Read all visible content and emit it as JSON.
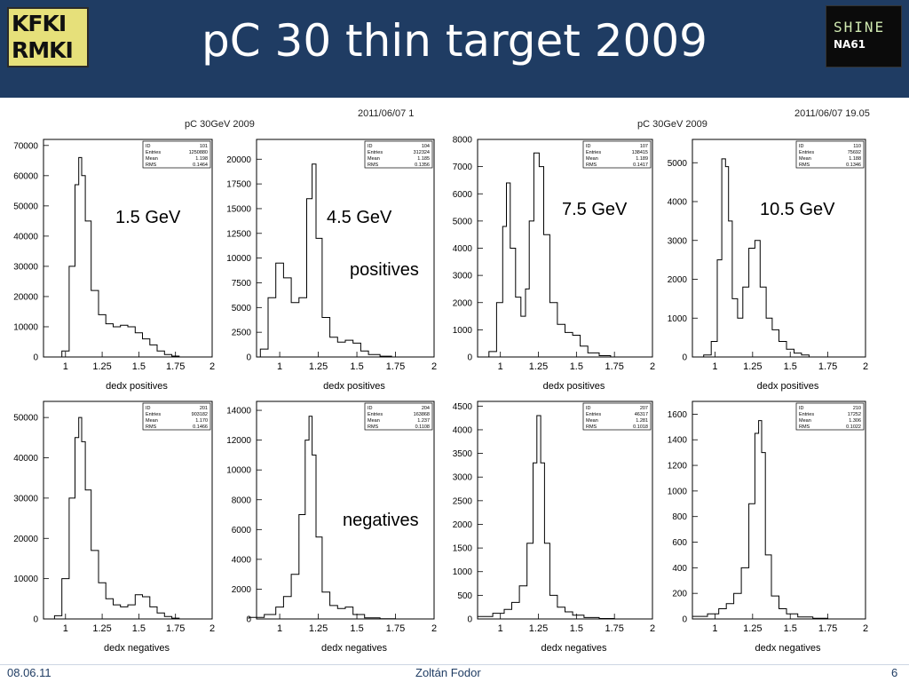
{
  "slide": {
    "title": "pC 30 thin target 2009",
    "logo_left": {
      "line1": "KFKI",
      "line2": "RMKI"
    },
    "logo_right": {
      "line1": "SHINE",
      "line2": "NA61"
    },
    "footer": {
      "date": "08.06.11",
      "author": "Zoltán Fodor",
      "page": "6"
    },
    "colors": {
      "header_bg": "#1f3c63",
      "title_text": "#ffffff",
      "plot_line": "#000000"
    }
  },
  "figure": {
    "canvas_titles": [
      "pC 30GeV 2009",
      "pC 30GeV 2009"
    ],
    "timestamps": [
      "2011/06/07  1",
      "2011/06/07  19.05"
    ],
    "annotations": {
      "energies": [
        "1.5 GeV",
        "4.5 GeV",
        "7.5 GeV",
        "10.5 GeV"
      ],
      "positives": "positives",
      "negatives": "negatives"
    }
  },
  "chart_data": [
    {
      "type": "line",
      "xlabel": "dedx positives",
      "xticks": [
        "1",
        "1.25",
        "1.5",
        "1.75",
        "2"
      ],
      "xlim": [
        0.85,
        2
      ],
      "ylim": [
        0,
        72000
      ],
      "yticks": [
        0,
        10000,
        20000,
        30000,
        40000,
        50000,
        60000,
        70000
      ],
      "stats": {
        "ID": "101",
        "Entries": "1250880",
        "Mean": "1.198",
        "RMS": "0.1464"
      },
      "x": [
        1.0,
        1.05,
        1.08,
        1.1,
        1.12,
        1.15,
        1.2,
        1.25,
        1.3,
        1.35,
        1.4,
        1.45,
        1.5,
        1.55,
        1.6,
        1.65,
        1.7,
        1.75
      ],
      "y": [
        2000,
        30000,
        57000,
        66000,
        60000,
        45000,
        22000,
        14000,
        11000,
        10000,
        10500,
        10000,
        8000,
        6000,
        4000,
        2000,
        800,
        300
      ]
    },
    {
      "type": "line",
      "xlabel": "dedx positives",
      "xticks": [
        "1",
        "1.25",
        "1.5",
        "1.75",
        "2"
      ],
      "xlim": [
        0.85,
        2
      ],
      "ylim": [
        0,
        22000
      ],
      "yticks": [
        0,
        2500,
        5000,
        7500,
        10000,
        12500,
        15000,
        17500,
        20000
      ],
      "stats": {
        "ID": "104",
        "Entries": "312324",
        "Mean": "1.185",
        "RMS": "0.1356"
      },
      "x": [
        0.9,
        0.95,
        1.0,
        1.05,
        1.1,
        1.15,
        1.2,
        1.22,
        1.25,
        1.3,
        1.35,
        1.4,
        1.45,
        1.5,
        1.55,
        1.6,
        1.7
      ],
      "y": [
        800,
        6000,
        9500,
        8000,
        5500,
        6000,
        16000,
        19500,
        12000,
        4000,
        2000,
        1500,
        1700,
        1400,
        600,
        250,
        80
      ]
    },
    {
      "type": "line",
      "xlabel": "dedx positives",
      "xticks": [
        "1",
        "1.25",
        "1.5",
        "1.75",
        "2"
      ],
      "xlim": [
        0.85,
        2
      ],
      "ylim": [
        0,
        8000
      ],
      "yticks": [
        0,
        1000,
        2000,
        3000,
        4000,
        5000,
        6000,
        7000,
        8000
      ],
      "stats": {
        "ID": "107",
        "Entries": "138415",
        "Mean": "1.189",
        "RMS": "0.1417"
      },
      "x": [
        0.95,
        1.0,
        1.03,
        1.05,
        1.08,
        1.12,
        1.15,
        1.18,
        1.2,
        1.24,
        1.27,
        1.3,
        1.35,
        1.4,
        1.45,
        1.5,
        1.55,
        1.6,
        1.7
      ],
      "y": [
        200,
        2000,
        4800,
        6400,
        4000,
        2200,
        1500,
        2500,
        5000,
        7500,
        7000,
        4500,
        2000,
        1200,
        900,
        800,
        400,
        150,
        50
      ]
    },
    {
      "type": "line",
      "xlabel": "dedx positives",
      "xticks": [
        "1",
        "1.25",
        "1.5",
        "1.75",
        "2"
      ],
      "xlim": [
        0.85,
        2
      ],
      "ylim": [
        0,
        5600
      ],
      "yticks": [
        0,
        1000,
        2000,
        3000,
        4000,
        5000
      ],
      "stats": {
        "ID": "110",
        "Entries": "75692",
        "Mean": "1.188",
        "RMS": "0.1346"
      },
      "x": [
        0.95,
        1.0,
        1.03,
        1.06,
        1.08,
        1.1,
        1.13,
        1.17,
        1.2,
        1.25,
        1.28,
        1.32,
        1.36,
        1.4,
        1.45,
        1.5,
        1.55,
        1.6
      ],
      "y": [
        50,
        400,
        2500,
        5100,
        4900,
        3500,
        1500,
        1000,
        1800,
        2800,
        3000,
        1800,
        1000,
        700,
        400,
        200,
        100,
        50
      ]
    },
    {
      "type": "line",
      "xlabel": "dedx negatives",
      "xticks": [
        "1",
        "1.25",
        "1.5",
        "1.75",
        "2"
      ],
      "xlim": [
        0.85,
        2
      ],
      "ylim": [
        0,
        54000
      ],
      "yticks": [
        0,
        10000,
        20000,
        30000,
        40000,
        50000
      ],
      "stats": {
        "ID": "201",
        "Entries": "903182",
        "Mean": "1.170",
        "RMS": "0.1466"
      },
      "x": [
        0.95,
        1.0,
        1.05,
        1.08,
        1.1,
        1.12,
        1.15,
        1.2,
        1.25,
        1.3,
        1.35,
        1.4,
        1.45,
        1.5,
        1.55,
        1.6,
        1.65,
        1.7,
        1.75
      ],
      "y": [
        800,
        10000,
        30000,
        45000,
        50000,
        44000,
        32000,
        17000,
        9000,
        5000,
        3500,
        3000,
        3500,
        6000,
        5500,
        3000,
        1500,
        600,
        200
      ]
    },
    {
      "type": "line",
      "xlabel": "dedx negatives",
      "xticks": [
        "1",
        "1.25",
        "1.5",
        "1.75",
        "2"
      ],
      "xlim": [
        0.85,
        2
      ],
      "ylim": [
        0,
        14600
      ],
      "yticks": [
        0,
        2000,
        4000,
        6000,
        8000,
        10000,
        12000,
        14000
      ],
      "stats": {
        "ID": "204",
        "Entries": "163868",
        "Mean": "1.237",
        "RMS": "0.1108"
      },
      "x": [
        0.85,
        0.95,
        1.0,
        1.05,
        1.1,
        1.15,
        1.18,
        1.2,
        1.22,
        1.25,
        1.3,
        1.35,
        1.4,
        1.45,
        1.5,
        1.6,
        1.7
      ],
      "y": [
        100,
        300,
        800,
        1500,
        3000,
        7000,
        12000,
        13600,
        11000,
        5500,
        1800,
        900,
        700,
        800,
        300,
        80,
        20
      ]
    },
    {
      "type": "line",
      "xlabel": "dedx negatives",
      "xticks": [
        "1",
        "1.25",
        "1.5",
        "1.75",
        "2"
      ],
      "xlim": [
        0.85,
        2
      ],
      "ylim": [
        0,
        4600
      ],
      "yticks": [
        0,
        500,
        1000,
        1500,
        2000,
        2500,
        3000,
        3500,
        4000,
        4500
      ],
      "stats": {
        "ID": "207",
        "Entries": "46317",
        "Mean": "1.281",
        "RMS": "0.1018"
      },
      "x": [
        0.9,
        1.0,
        1.05,
        1.1,
        1.15,
        1.2,
        1.23,
        1.25,
        1.28,
        1.3,
        1.35,
        1.4,
        1.45,
        1.5,
        1.6,
        1.7
      ],
      "y": [
        50,
        120,
        200,
        350,
        700,
        1600,
        3300,
        4300,
        3300,
        1600,
        500,
        250,
        150,
        80,
        30,
        10
      ]
    },
    {
      "type": "line",
      "xlabel": "dedx negatives",
      "xticks": [
        "1",
        "1.25",
        "1.5",
        "1.75",
        "2"
      ],
      "xlim": [
        0.85,
        2
      ],
      "ylim": [
        0,
        1700
      ],
      "yticks": [
        0,
        200,
        400,
        600,
        800,
        1000,
        1200,
        1400,
        1600
      ],
      "stats": {
        "ID": "210",
        "Entries": "17252",
        "Mean": "1.306",
        "RMS": "0.1022"
      },
      "x": [
        0.9,
        1.0,
        1.05,
        1.1,
        1.15,
        1.2,
        1.25,
        1.28,
        1.3,
        1.32,
        1.35,
        1.4,
        1.45,
        1.5,
        1.6,
        1.7
      ],
      "y": [
        20,
        40,
        80,
        120,
        200,
        400,
        900,
        1450,
        1550,
        1300,
        500,
        180,
        80,
        40,
        15,
        5
      ]
    }
  ]
}
